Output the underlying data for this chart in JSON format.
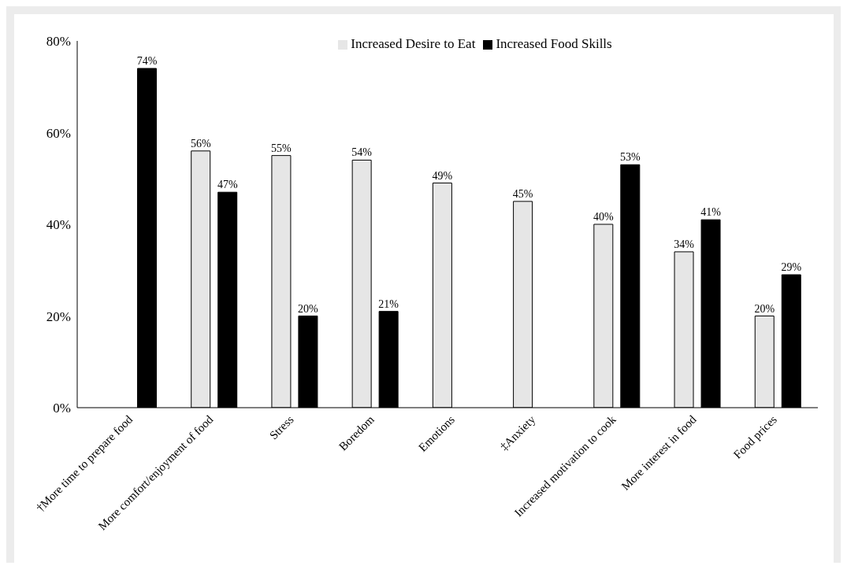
{
  "chart_data": {
    "type": "bar",
    "categories": [
      "†More time to prepare food",
      "More comfort/enjoyment of food",
      "Stress",
      "Boredom",
      "Emotions",
      "‡Anxiety",
      "Increased motivation to cook",
      "More interest in food",
      "Food prices"
    ],
    "series": [
      {
        "name": "Increased Desire to Eat",
        "color": "#e6e6e6",
        "values": [
          null,
          56,
          55,
          54,
          49,
          45,
          40,
          34,
          20
        ],
        "value_labels": [
          null,
          "56%",
          "55%",
          "54%",
          "49%",
          "45%",
          "40%",
          "34%",
          "20%"
        ]
      },
      {
        "name": "Increased Food Skills",
        "color": "#000000",
        "values": [
          74,
          47,
          20,
          21,
          null,
          null,
          53,
          41,
          29
        ],
        "value_labels": [
          "74%",
          "47%",
          "20%",
          "21%",
          null,
          null,
          "53%",
          "41%",
          "29%"
        ]
      }
    ],
    "ylim": [
      0,
      80
    ],
    "yticks": [
      {
        "value": 0,
        "label": "0%"
      },
      {
        "value": 20,
        "label": "20%"
      },
      {
        "value": 40,
        "label": "40%"
      },
      {
        "value": 60,
        "label": "60%"
      },
      {
        "value": 80,
        "label": "80%"
      }
    ],
    "grid": false,
    "legend": "top"
  }
}
